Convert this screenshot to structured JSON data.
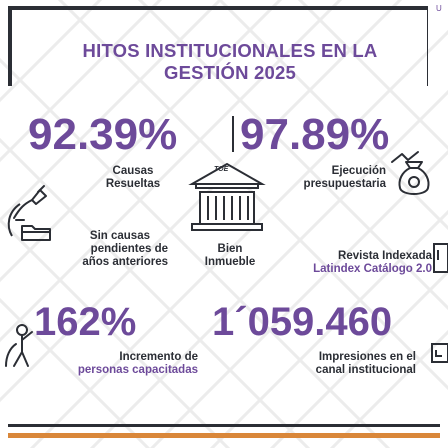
{
  "header": {
    "title_line1": "HITOS INSTITUCIONALES EN LA",
    "title_line2": "GESTIÓN 2025",
    "corner_glyph": "U"
  },
  "stats": {
    "causas_pct": "92.39%",
    "ejecucion_pct": "97.89%",
    "capacitadas_pct": "162%",
    "impresiones_count": "1´059.460"
  },
  "labels": {
    "causas_resueltas": [
      "Causas",
      "Resueltas"
    ],
    "ejecucion": [
      "Ejecución",
      "presupuestaria"
    ],
    "sin_causas": [
      "Sin causas",
      "pendientes de",
      "años anteriores"
    ],
    "bien_inmueble": [
      "Bien",
      "Inmueble"
    ],
    "revista": [
      "Revista Indexada",
      "Latindex Catálogo 2.0"
    ],
    "incremento": [
      "Incremento de",
      "personas capacitadas"
    ],
    "impresiones": [
      "Impresiones en el",
      "canal institucional"
    ]
  },
  "building_label": "TOE",
  "icons": {
    "causas": "scale-justice-icon",
    "ejecucion": "money-bag-icon",
    "sin_causas": "folder-icon",
    "bien": "courthouse-icon",
    "revista": "document-icon",
    "incremento": "people-growth-icon",
    "impresiones": "monitor-icon"
  },
  "colors": {
    "primary_purple": "#6d4a9a",
    "dark": "#2b2e35",
    "accent_orange": "#d9873a",
    "pattern_gray": "#ececec"
  }
}
